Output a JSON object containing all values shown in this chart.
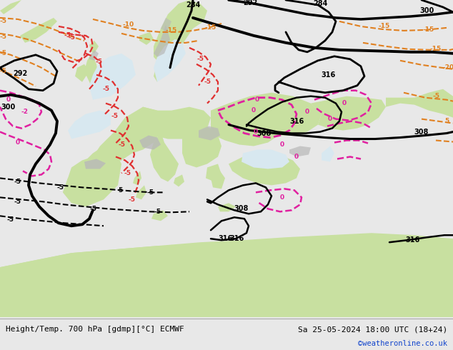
{
  "title_left": "Height/Temp. 700 hPa [gdmp][°C] ECMWF",
  "title_right": "Sa 25-05-2024 18:00 UTC (18+24)",
  "watermark": "©weatheronline.co.uk",
  "land_color": "#c8e0a0",
  "ocean_color": "#d8e8f0",
  "mountain_color": "#b8b8b8",
  "fig_width": 6.34,
  "fig_height": 4.9,
  "dpi": 100,
  "caption_bg": "#e8e8e8",
  "border_color": "#999999"
}
